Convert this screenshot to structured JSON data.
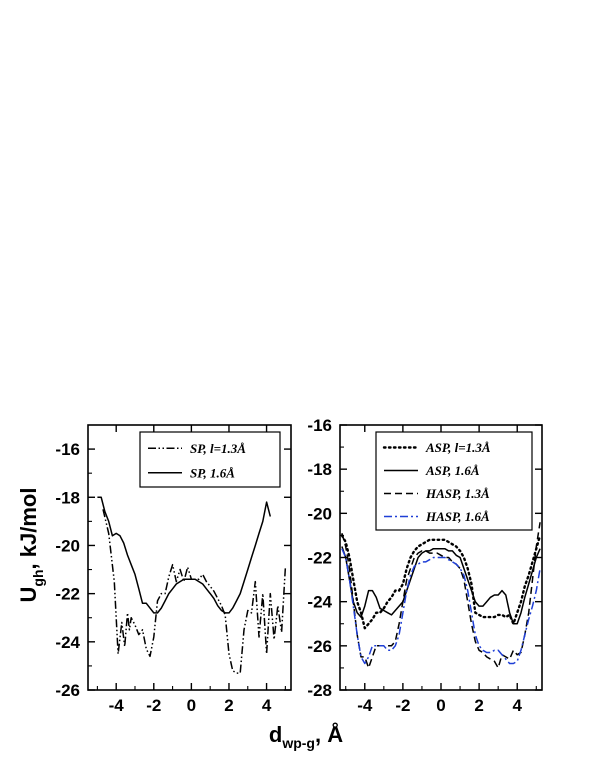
{
  "axes": {
    "ylabel_main": "U",
    "ylabel_sub": "gh",
    "ylabel_rest": ", kJ/mol",
    "xlabel_main": "d",
    "xlabel_sub": "wp-g",
    "xlabel_rest": ", Å"
  },
  "chart_data": [
    {
      "type": "line",
      "title": "",
      "xlim": [
        -5.5,
        5.3
      ],
      "ylim": [
        -26,
        -15
      ],
      "xticks": [
        -4,
        -2,
        0,
        2,
        4
      ],
      "xtick_labels": [
        "-4",
        "-2",
        "0",
        "2",
        "4"
      ],
      "yticks": [
        -26,
        -24,
        -22,
        -20,
        -18,
        -16
      ],
      "ytick_labels": [
        "-26",
        "-24",
        "-22",
        "-20",
        "-18",
        "-16"
      ],
      "legend_position": "top-right",
      "series": [
        {
          "name": "SP, l=1.3Å",
          "color": "#000000",
          "dash": "dash-dot-dot",
          "x": [
            -4.7,
            -4.4,
            -4.1,
            -3.9,
            -3.7,
            -3.55,
            -3.4,
            -3.3,
            -3.2,
            -3.0,
            -2.8,
            -2.6,
            -2.4,
            -2.2,
            -2.0,
            -1.8,
            -1.6,
            -1.4,
            -1.2,
            -1.0,
            -0.8,
            -0.6,
            -0.4,
            -0.2,
            0.0,
            0.2,
            0.4,
            0.6,
            0.8,
            1.0,
            1.2,
            1.4,
            1.6,
            1.8,
            2.0,
            2.2,
            2.4,
            2.6,
            2.8,
            3.0,
            3.2,
            3.4,
            3.6,
            3.8,
            4.0,
            4.2,
            4.4,
            4.6,
            4.8,
            5.0
          ],
          "y": [
            -18.5,
            -19.5,
            -21.5,
            -24.5,
            -23.2,
            -24.2,
            -22.8,
            -23.5,
            -23.0,
            -23.3,
            -23.7,
            -23.5,
            -24.3,
            -24.6,
            -23.8,
            -22.3,
            -22.0,
            -22.0,
            -21.3,
            -20.8,
            -21.5,
            -21.0,
            -21.5,
            -20.9,
            -21.4,
            -21.4,
            -21.4,
            -21.2,
            -21.5,
            -21.7,
            -21.9,
            -22.2,
            -22.5,
            -22.9,
            -24.5,
            -25.2,
            -25.3,
            -25.3,
            -23.5,
            -22.7,
            -22.8,
            -21.5,
            -23.8,
            -22.0,
            -24.5,
            -22.0,
            -23.9,
            -22.5,
            -23.6,
            -20.9
          ]
        },
        {
          "name": "SP, 1.6Å",
          "color": "#000000",
          "dash": "solid",
          "x": [
            -5.0,
            -4.8,
            -4.6,
            -4.4,
            -4.2,
            -4.0,
            -3.8,
            -3.6,
            -3.4,
            -3.2,
            -3.0,
            -2.8,
            -2.6,
            -2.4,
            -2.2,
            -2.0,
            -1.8,
            -1.6,
            -1.4,
            -1.2,
            -1.0,
            -0.8,
            -0.6,
            -0.4,
            -0.2,
            0.0,
            0.2,
            0.4,
            0.6,
            0.8,
            1.0,
            1.2,
            1.4,
            1.6,
            1.8,
            2.0,
            2.2,
            2.4,
            2.6,
            2.8,
            3.0,
            3.2,
            3.4,
            3.6,
            3.8,
            4.0,
            4.2
          ],
          "y": [
            -18.0,
            -18.0,
            -18.6,
            -19.0,
            -19.6,
            -19.5,
            -19.6,
            -19.9,
            -20.4,
            -20.8,
            -21.2,
            -21.8,
            -22.4,
            -22.4,
            -22.6,
            -22.8,
            -22.8,
            -22.6,
            -22.3,
            -22.0,
            -21.8,
            -21.6,
            -21.5,
            -21.4,
            -21.4,
            -21.4,
            -21.4,
            -21.5,
            -21.6,
            -21.8,
            -22.0,
            -22.2,
            -22.5,
            -22.7,
            -22.8,
            -22.8,
            -22.6,
            -22.3,
            -22.0,
            -21.5,
            -21.0,
            -20.5,
            -20.0,
            -19.5,
            -19.0,
            -18.2,
            -18.8
          ]
        }
      ]
    },
    {
      "type": "line",
      "title": "",
      "xlim": [
        -5.3,
        5.3
      ],
      "ylim": [
        -28,
        -16
      ],
      "xticks": [
        -4,
        -2,
        0,
        2,
        4
      ],
      "xtick_labels": [
        "-4",
        "-2",
        "0",
        "2",
        "4"
      ],
      "yticks": [
        -28,
        -26,
        -24,
        -22,
        -20,
        -18,
        -16
      ],
      "ytick_labels": [
        "-28",
        "-26",
        "-24",
        "-22",
        "-20",
        "-18",
        "-16"
      ],
      "legend_position": "top-right",
      "series": [
        {
          "name": "ASP,  l=1.3Å",
          "color": "#000000",
          "dash": "dotted",
          "x": [
            -5.2,
            -5.0,
            -4.8,
            -4.6,
            -4.4,
            -4.2,
            -4.0,
            -3.8,
            -3.6,
            -3.4,
            -3.2,
            -3.0,
            -2.8,
            -2.6,
            -2.4,
            -2.2,
            -2.0,
            -1.8,
            -1.6,
            -1.4,
            -1.2,
            -1.0,
            -0.8,
            -0.6,
            -0.4,
            -0.2,
            0.0,
            0.2,
            0.4,
            0.6,
            0.8,
            1.0,
            1.2,
            1.4,
            1.6,
            1.8,
            2.0,
            2.2,
            2.4,
            2.6,
            2.8,
            3.0,
            3.2,
            3.4,
            3.6,
            3.8,
            4.0,
            4.2,
            4.4,
            4.6,
            4.8,
            5.0,
            5.2
          ],
          "y": [
            -21.0,
            -21.3,
            -22.0,
            -23.0,
            -24.0,
            -24.5,
            -25.2,
            -25.0,
            -24.8,
            -24.5,
            -24.5,
            -24.3,
            -24.0,
            -23.8,
            -23.5,
            -23.5,
            -23.2,
            -22.5,
            -22.0,
            -21.7,
            -21.5,
            -21.4,
            -21.3,
            -21.2,
            -21.2,
            -21.2,
            -21.2,
            -21.2,
            -21.3,
            -21.4,
            -21.5,
            -21.7,
            -22.0,
            -22.5,
            -23.2,
            -24.5,
            -24.6,
            -24.7,
            -24.7,
            -24.7,
            -24.7,
            -24.6,
            -24.6,
            -24.7,
            -24.6,
            -25.0,
            -24.5,
            -24.0,
            -23.3,
            -22.8,
            -22.2,
            -21.6,
            -21.0
          ]
        },
        {
          "name": "ASP, 1.6Å",
          "color": "#000000",
          "dash": "solid",
          "x": [
            -5.2,
            -5.0,
            -4.8,
            -4.6,
            -4.4,
            -4.2,
            -4.0,
            -3.8,
            -3.6,
            -3.4,
            -3.2,
            -3.0,
            -2.8,
            -2.6,
            -2.4,
            -2.2,
            -2.0,
            -1.8,
            -1.6,
            -1.4,
            -1.2,
            -1.0,
            -0.8,
            -0.6,
            -0.4,
            -0.2,
            0.0,
            0.2,
            0.4,
            0.6,
            0.8,
            1.0,
            1.2,
            1.4,
            1.6,
            1.8,
            2.0,
            2.2,
            2.4,
            2.6,
            2.8,
            3.0,
            3.2,
            3.4,
            3.6,
            3.8,
            4.0,
            4.2,
            4.4,
            4.6,
            4.8,
            5.0,
            5.2
          ],
          "y": [
            -21.5,
            -22.0,
            -23.0,
            -24.0,
            -24.5,
            -24.7,
            -24.2,
            -23.5,
            -23.5,
            -23.8,
            -24.3,
            -24.4,
            -24.5,
            -24.6,
            -24.4,
            -24.2,
            -24.0,
            -23.5,
            -23.0,
            -22.5,
            -22.0,
            -21.8,
            -21.7,
            -21.7,
            -21.6,
            -21.6,
            -21.6,
            -21.6,
            -21.7,
            -21.7,
            -21.9,
            -22.0,
            -22.5,
            -23.0,
            -23.5,
            -24.0,
            -24.2,
            -24.2,
            -24.0,
            -23.8,
            -23.7,
            -23.7,
            -23.5,
            -23.7,
            -24.5,
            -25.0,
            -25.0,
            -24.5,
            -23.8,
            -23.2,
            -22.6,
            -22.0,
            -21.6
          ]
        },
        {
          "name": "HASP, 1.3Å",
          "color": "#000000",
          "dash": "dashed",
          "x": [
            -5.2,
            -5.0,
            -4.8,
            -4.6,
            -4.4,
            -4.2,
            -4.0,
            -3.8,
            -3.6,
            -3.4,
            -3.2,
            -3.0,
            -2.8,
            -2.6,
            -2.4,
            -2.2,
            -2.0,
            -1.8,
            -1.6,
            -1.4,
            -1.2,
            -1.0,
            -0.8,
            -0.6,
            -0.4,
            -0.2,
            0.0,
            0.2,
            0.4,
            0.6,
            0.8,
            1.0,
            1.2,
            1.4,
            1.6,
            1.8,
            2.0,
            2.2,
            2.4,
            2.6,
            2.8,
            3.0,
            3.2,
            3.4,
            3.6,
            3.8,
            4.0,
            4.2,
            4.4,
            4.6,
            4.8,
            5.0,
            5.2
          ],
          "y": [
            -20.9,
            -21.5,
            -22.5,
            -24.0,
            -25.5,
            -26.5,
            -26.5,
            -27.0,
            -26.5,
            -26.0,
            -26.0,
            -26.0,
            -26.0,
            -26.0,
            -25.8,
            -25.0,
            -24.0,
            -23.0,
            -22.5,
            -22.0,
            -21.8,
            -21.7,
            -21.7,
            -21.8,
            -21.8,
            -21.8,
            -21.9,
            -22.0,
            -22.0,
            -22.2,
            -22.3,
            -22.5,
            -23.0,
            -24.0,
            -25.0,
            -25.8,
            -26.2,
            -26.3,
            -26.5,
            -26.6,
            -26.7,
            -27.0,
            -26.4,
            -26.5,
            -26.6,
            -26.2,
            -26.4,
            -26.3,
            -25.5,
            -24.5,
            -23.0,
            -21.5,
            -20.4
          ]
        },
        {
          "name": "HASP, 1.6Å",
          "color": "#1f3fd6",
          "dash": "dash-dot",
          "x": [
            -5.2,
            -5.0,
            -4.8,
            -4.6,
            -4.4,
            -4.2,
            -4.0,
            -3.8,
            -3.6,
            -3.4,
            -3.2,
            -3.0,
            -2.8,
            -2.6,
            -2.4,
            -2.2,
            -2.0,
            -1.8,
            -1.6,
            -1.4,
            -1.2,
            -1.0,
            -0.8,
            -0.6,
            -0.4,
            -0.2,
            0.0,
            0.2,
            0.4,
            0.6,
            0.8,
            1.0,
            1.2,
            1.4,
            1.6,
            1.8,
            2.0,
            2.2,
            2.4,
            2.6,
            2.8,
            3.0,
            3.2,
            3.4,
            3.6,
            3.8,
            4.0,
            4.2,
            4.4,
            4.6,
            4.8,
            5.0,
            5.2
          ],
          "y": [
            -21.6,
            -22.0,
            -23.0,
            -24.2,
            -25.5,
            -26.5,
            -26.8,
            -26.5,
            -26.0,
            -26.0,
            -26.0,
            -26.0,
            -26.2,
            -26.2,
            -26.0,
            -25.5,
            -24.5,
            -23.5,
            -22.8,
            -22.4,
            -22.3,
            -22.2,
            -22.2,
            -22.1,
            -22.0,
            -22.0,
            -22.0,
            -22.0,
            -22.1,
            -22.2,
            -22.3,
            -22.5,
            -22.8,
            -23.5,
            -24.5,
            -25.5,
            -26.0,
            -26.2,
            -26.3,
            -26.3,
            -26.2,
            -26.2,
            -26.4,
            -26.6,
            -26.8,
            -26.8,
            -26.7,
            -26.2,
            -25.5,
            -24.8,
            -24.2,
            -23.5,
            -22.5
          ]
        }
      ]
    }
  ]
}
